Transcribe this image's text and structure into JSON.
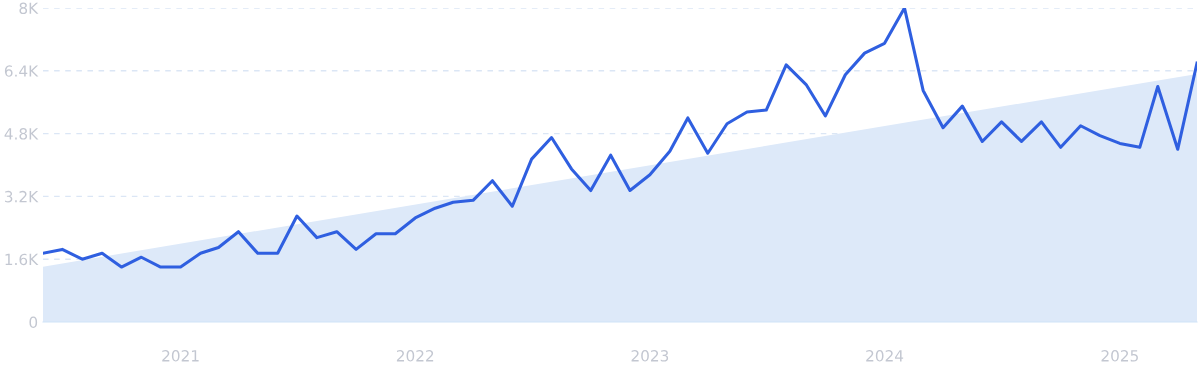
{
  "chart_data": {
    "type": "line",
    "x": [
      "2020-06",
      "2020-07",
      "2020-08",
      "2020-09",
      "2020-10",
      "2020-11",
      "2020-12",
      "2021-01",
      "2021-02",
      "2021-03",
      "2021-04",
      "2021-05",
      "2021-06",
      "2021-07",
      "2021-08",
      "2021-09",
      "2021-10",
      "2021-11",
      "2021-12",
      "2022-01",
      "2022-02",
      "2022-03",
      "2022-04",
      "2022-05",
      "2022-06",
      "2022-07",
      "2022-08",
      "2022-09",
      "2022-10",
      "2022-11",
      "2022-12",
      "2023-01",
      "2023-02",
      "2023-03",
      "2023-04",
      "2023-05",
      "2023-06",
      "2023-07",
      "2023-08",
      "2023-09",
      "2023-10",
      "2023-11",
      "2023-12",
      "2024-01",
      "2024-02",
      "2024-03",
      "2024-04",
      "2024-05",
      "2024-06",
      "2024-07",
      "2024-08",
      "2024-09",
      "2024-10",
      "2024-11",
      "2024-12",
      "2025-01",
      "2025-02",
      "2025-03",
      "2025-04",
      "2025-05"
    ],
    "series": [
      {
        "type": "area",
        "color": "#dde9f9",
        "x": [
          "2020-06",
          "2025-05"
        ],
        "values": [
          1410,
          6320
        ]
      },
      {
        "color": "#2f5fe0",
        "values": [
          1750,
          1850,
          1600,
          1750,
          1400,
          1650,
          1400,
          1400,
          1750,
          1900,
          2300,
          1750,
          1750,
          2700,
          2150,
          2300,
          1850,
          2250,
          2250,
          2650,
          2900,
          3050,
          3100,
          3600,
          2950,
          4150,
          4700,
          3900,
          3350,
          4250,
          3350,
          3750,
          4350,
          5200,
          4300,
          5050,
          5350,
          5400,
          6550,
          6050,
          5250,
          6300,
          6850,
          7100,
          8000,
          5900,
          4950,
          5500,
          4600,
          5100,
          4600,
          5100,
          4450,
          5000,
          4750,
          4550,
          4450,
          6000,
          4400,
          6600
        ]
      }
    ],
    "xlim": [
      "2020-06",
      "2025-05"
    ],
    "xticks": [
      {
        "value": "2021-01",
        "label": "2021"
      },
      {
        "value": "2022-01",
        "label": "2022"
      },
      {
        "value": "2023-01",
        "label": "2023"
      },
      {
        "value": "2024-01",
        "label": "2024"
      },
      {
        "value": "2025-01",
        "label": "2025"
      }
    ],
    "ylim": [
      0,
      8000
    ],
    "yticks": [
      0,
      {
        "value": 1600,
        "label": "1.6K"
      },
      {
        "value": 3200,
        "label": "3.2K"
      },
      {
        "value": 4800,
        "label": "4.8K"
      },
      {
        "value": 6400,
        "label": "6.4K"
      },
      {
        "value": 8000,
        "label": "8K"
      }
    ],
    "grid": "y",
    "marker": "none",
    "line_style": "solid"
  }
}
